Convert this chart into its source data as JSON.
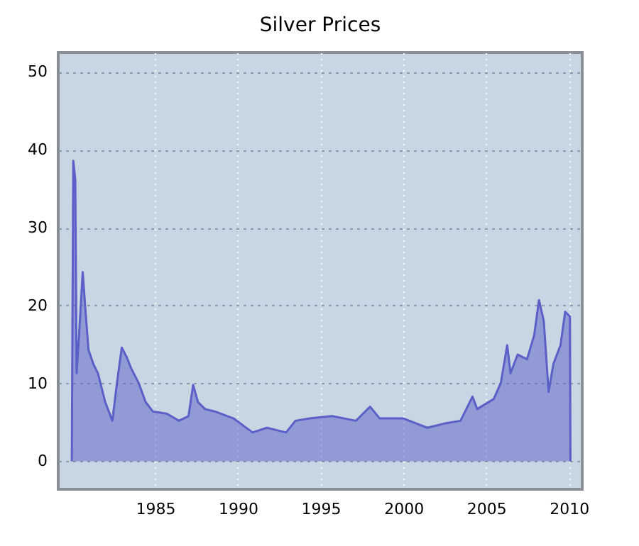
{
  "chart_data": {
    "type": "area",
    "title": "Silver Prices",
    "series": [
      {
        "color": "#5b5fc7",
        "x": [
          1979.97,
          1980.06,
          1980.18,
          1980.26,
          1980.41,
          1980.63,
          1980.78,
          1980.98,
          1981.27,
          1981.55,
          1981.99,
          1982.42,
          1982.7,
          1982.99,
          1983.28,
          1983.56,
          1984.0,
          1984.43,
          1984.86,
          1985.72,
          1986.44,
          1987.02,
          1987.3,
          1987.59,
          1988.02,
          1988.6,
          1989.74,
          1990.89,
          1991.76,
          1992.91,
          1993.48,
          1994.35,
          1995.69,
          1997.13,
          1997.99,
          1998.57,
          2000.0,
          2001.44,
          2002.59,
          2003.45,
          2004.17,
          2004.46,
          2005.46,
          2005.89,
          2006.27,
          2006.47,
          2006.9,
          2007.47,
          2007.9,
          2008.19,
          2008.48,
          2008.77,
          2009.06,
          2009.49,
          2009.77,
          2010.06,
          2010.09
        ],
        "values": [
          0,
          38.6,
          36.2,
          11.3,
          16.2,
          24.3,
          19.8,
          14.3,
          12.5,
          11.3,
          7.6,
          5.2,
          10.1,
          14.6,
          13.4,
          11.9,
          10.1,
          7.6,
          6.4,
          6.1,
          5.2,
          5.8,
          9.8,
          7.6,
          6.7,
          6.4,
          5.5,
          3.7,
          4.3,
          3.7,
          5.2,
          5.5,
          5.8,
          5.2,
          7.0,
          5.5,
          5.5,
          4.3,
          4.9,
          5.2,
          8.3,
          6.7,
          8.0,
          10.1,
          14.9,
          11.3,
          13.7,
          13.1,
          16.2,
          20.7,
          18.0,
          8.9,
          12.5,
          14.9,
          19.2,
          18.6,
          0
        ]
      }
    ],
    "xlim": [
      1979.15,
      2010.8
    ],
    "xticks": [
      1985,
      1990,
      1995,
      2000,
      2005,
      2010
    ],
    "ylim": [
      -3.6,
      52.5
    ],
    "yticks": [
      0,
      10,
      20,
      30,
      40,
      50
    ],
    "grid": true,
    "marker": "none",
    "line_style": "solid"
  }
}
